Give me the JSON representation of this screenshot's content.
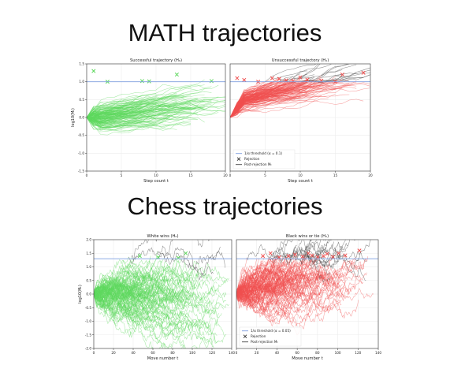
{
  "titles": {
    "math": "MATH trajectories",
    "chess": "Chess trajectories"
  },
  "chart_data": [
    {
      "type": "line",
      "title": "Successful trajectory (H₀)",
      "xlabel": "Step count t",
      "ylabel": "log10(Mₜ)",
      "xlim": [
        0,
        20
      ],
      "ylim": [
        -1.5,
        1.5
      ],
      "xticks": [
        "0",
        "5",
        "10",
        "15",
        "20"
      ],
      "yticks": [
        "1.5",
        "1.0",
        "0.5",
        "0.0",
        "-0.5",
        "-1.0",
        "-1.5"
      ],
      "threshold": 1.0,
      "grid": true,
      "series_color": "#5fd85f",
      "post_rejection_color": "#444444",
      "threshold_color": "#7f9fe0",
      "rejections": [
        {
          "x": 1,
          "y": 1.3
        },
        {
          "x": 3,
          "y": 1.0
        },
        {
          "x": 8,
          "y": 1.02
        },
        {
          "x": 9,
          "y": 1.01
        },
        {
          "x": 13,
          "y": 1.2
        },
        {
          "x": 18,
          "y": 1.02
        }
      ]
    },
    {
      "type": "line",
      "title": "Unsuccessful trajectory (H₁)",
      "xlabel": "Step count t",
      "ylabel": "",
      "xlim": [
        0,
        20
      ],
      "ylim": [
        -1.5,
        1.5
      ],
      "xticks": [
        "0",
        "5",
        "10",
        "15",
        "20"
      ],
      "yticks": [],
      "threshold": 1.0,
      "grid": true,
      "series_color": "#f05050",
      "post_rejection_color": "#444444",
      "threshold_color": "#7f9fe0",
      "rejections": [
        {
          "x": 1,
          "y": 1.1
        },
        {
          "x": 2,
          "y": 1.05
        },
        {
          "x": 4,
          "y": 1.0
        },
        {
          "x": 6,
          "y": 1.1
        },
        {
          "x": 7,
          "y": 1.08
        },
        {
          "x": 8,
          "y": 1.04
        },
        {
          "x": 9,
          "y": 1.02
        },
        {
          "x": 10,
          "y": 1.12
        },
        {
          "x": 11,
          "y": 1.06
        },
        {
          "x": 13,
          "y": 1.03
        },
        {
          "x": 15,
          "y": 1.0
        },
        {
          "x": 16,
          "y": 1.2
        },
        {
          "x": 19,
          "y": 1.25
        }
      ],
      "legend": {
        "position": "lower-left",
        "entries": [
          "1/α threshold (α = 0.1)",
          "Rejection",
          "Post-rejection Mₜ"
        ]
      }
    },
    {
      "type": "line",
      "title": "White wins (H₀)",
      "xlabel": "Move number t",
      "ylabel": "log10(Mₜ)",
      "xlim": [
        0,
        150
      ],
      "ylim": [
        -2.0,
        2.0
      ],
      "xticks": [
        "0",
        "20",
        "40",
        "60",
        "80",
        "100",
        "120",
        "140"
      ],
      "yticks": [
        "2.0",
        "1.5",
        "1.0",
        "0.5",
        "0.0",
        "-0.5",
        "-1.0",
        "-1.5",
        "-2.0"
      ],
      "threshold": 1.3,
      "grid": true,
      "series_color": "#5fd85f",
      "post_rejection_color": "#444444",
      "threshold_color": "#7f9fe0",
      "rejections": [
        {
          "x": 50,
          "y": 1.4
        },
        {
          "x": 70,
          "y": 1.35
        },
        {
          "x": 92,
          "y": 1.33
        },
        {
          "x": 100,
          "y": 1.5
        }
      ]
    },
    {
      "type": "line",
      "title": "Black wins or tie (H₁)",
      "xlabel": "Move number t",
      "ylabel": "",
      "xlim": [
        0,
        150
      ],
      "ylim": [
        -2.0,
        2.0
      ],
      "xticks": [
        "0",
        "20",
        "40",
        "60",
        "80",
        "100",
        "120",
        "140"
      ],
      "yticks": [],
      "threshold": 1.3,
      "grid": true,
      "series_color": "#f05050",
      "post_rejection_color": "#444444",
      "threshold_color": "#7f9fe0",
      "rejections": [
        {
          "x": 28,
          "y": 1.4
        },
        {
          "x": 36,
          "y": 1.5
        },
        {
          "x": 45,
          "y": 1.35
        },
        {
          "x": 55,
          "y": 1.4
        },
        {
          "x": 62,
          "y": 1.45
        },
        {
          "x": 70,
          "y": 1.38
        },
        {
          "x": 76,
          "y": 1.5
        },
        {
          "x": 80,
          "y": 1.42
        },
        {
          "x": 86,
          "y": 1.36
        },
        {
          "x": 92,
          "y": 1.4
        },
        {
          "x": 96,
          "y": 1.48
        },
        {
          "x": 102,
          "y": 1.37
        },
        {
          "x": 108,
          "y": 1.5
        },
        {
          "x": 115,
          "y": 1.42
        },
        {
          "x": 130,
          "y": 1.6
        }
      ],
      "legend": {
        "position": "lower-left",
        "entries": [
          "1/α threshold (α = 0.05)",
          "Rejection",
          "Post-rejection Mₜ"
        ]
      }
    }
  ]
}
